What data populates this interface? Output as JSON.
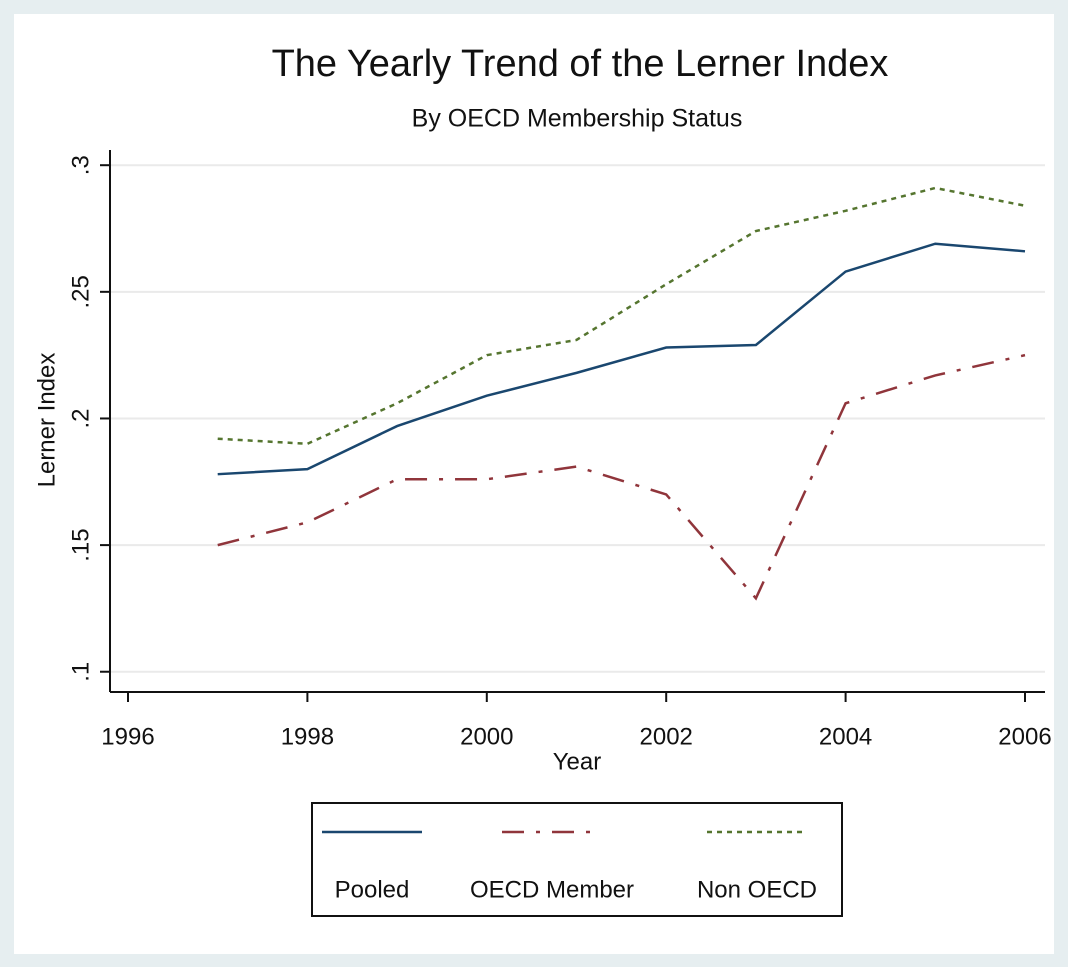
{
  "chart_data": {
    "type": "line",
    "title": "The Yearly Trend of the Lerner Index",
    "subtitle": "By OECD Membership Status",
    "xlabel": "Year",
    "ylabel": "Lerner Index",
    "x": [
      1997,
      1998,
      1999,
      2000,
      2001,
      2002,
      2003,
      2004,
      2005,
      2006
    ],
    "series": [
      {
        "name": "Pooled",
        "color": "#1a476f",
        "dash": "solid",
        "values": [
          0.178,
          0.18,
          0.197,
          0.209,
          0.218,
          0.228,
          0.229,
          0.258,
          0.269,
          0.266
        ]
      },
      {
        "name": "OECD Member",
        "color": "#90353b",
        "dash": "dashdot",
        "values": [
          0.15,
          0.159,
          0.176,
          0.176,
          0.181,
          0.17,
          0.129,
          0.206,
          0.217,
          0.225
        ]
      },
      {
        "name": "Non OECD",
        "color": "#55752f",
        "dash": "dot",
        "values": [
          0.192,
          0.19,
          0.206,
          0.225,
          0.231,
          0.253,
          0.274,
          0.282,
          0.291,
          0.284
        ]
      }
    ],
    "xlim": [
      1996,
      2006
    ],
    "xticks": [
      1996,
      1998,
      2000,
      2002,
      2004,
      2006
    ],
    "ylim": [
      0.092,
      0.306
    ],
    "yticks": [
      {
        "value": 0.1,
        "label": ".1"
      },
      {
        "value": 0.15,
        "label": ".15"
      },
      {
        "value": 0.2,
        "label": ".2"
      },
      {
        "value": 0.25,
        "label": ".25"
      },
      {
        "value": 0.3,
        "label": ".3"
      }
    ],
    "grid": true,
    "legend": "bottom"
  }
}
